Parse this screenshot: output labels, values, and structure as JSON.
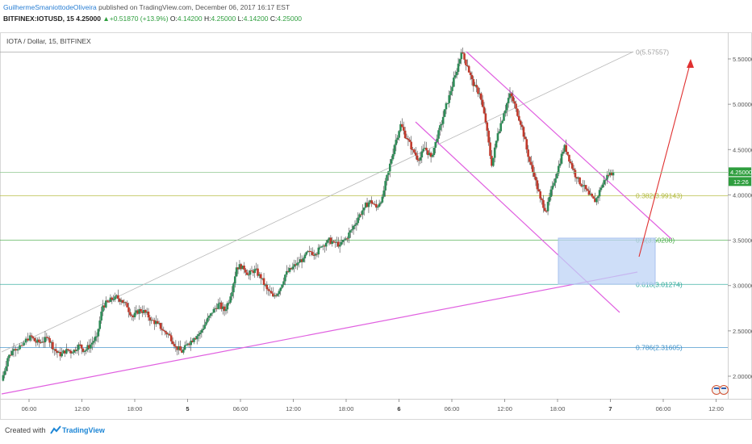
{
  "header": {
    "author": "GuilhermeSmaniottodeOliveira",
    "published": "published on TradingView.com, December 06, 2017 16:17 EST",
    "symbol": "BITFINEX:IOTUSD, 15",
    "last": "4.25000",
    "change": "+0.51870 (+13.9%)",
    "o_label": "O:",
    "o_value": "4.14200",
    "h_label": "H:",
    "h_value": "4.25000",
    "l_label": "L:",
    "l_value": "4.14200",
    "c_label": "C:",
    "c_value": "4.25000"
  },
  "chart_data": {
    "type": "candlestick",
    "title": "IOTA / Dollar, 15, BITFINEX",
    "ylim": [
      1.78,
      5.75
    ],
    "y_ticks": [
      "5.50000",
      "5.00000",
      "4.50000",
      "4.00000",
      "3.50000",
      "3.00000",
      "2.50000",
      "2.00000"
    ],
    "x_ticks": [
      "06:00",
      "12:00",
      "18:00",
      "5",
      "06:00",
      "12:00",
      "18:00",
      "6",
      "06:00",
      "12:00",
      "18:00",
      "7",
      "06:00",
      "12:00"
    ],
    "price_label": "4.25000",
    "price_time": "12:26",
    "fib_levels": [
      {
        "label": "0(5.57557)",
        "value": 5.57557,
        "color": "#a0a0a0"
      },
      {
        "label": "0.382(3.99143)",
        "value": 3.99143,
        "color": "#b0b838"
      },
      {
        "label": "0.5(3.50208)",
        "value": 3.50208,
        "color": "#4cae4c"
      },
      {
        "label": "0.618(3.01274)",
        "value": 3.01274,
        "color": "#2ea89a"
      },
      {
        "label": "0.786(2.31605)",
        "value": 2.31605,
        "color": "#3a8fc8"
      }
    ],
    "price_path": [
      [
        0,
        1.95
      ],
      [
        0.015,
        2.2
      ],
      [
        0.03,
        2.3
      ],
      [
        0.05,
        2.34
      ],
      [
        0.07,
        2.45
      ],
      [
        0.085,
        2.37
      ],
      [
        0.1,
        2.38
      ],
      [
        0.115,
        2.42
      ],
      [
        0.13,
        2.3
      ],
      [
        0.145,
        2.22
      ],
      [
        0.16,
        2.3
      ],
      [
        0.175,
        2.26
      ],
      [
        0.19,
        2.35
      ],
      [
        0.205,
        2.28
      ],
      [
        0.22,
        2.35
      ],
      [
        0.235,
        2.44
      ],
      [
        0.25,
        2.78
      ],
      [
        0.265,
        2.82
      ],
      [
        0.28,
        2.88
      ],
      [
        0.295,
        2.84
      ],
      [
        0.31,
        2.76
      ],
      [
        0.325,
        2.65
      ],
      [
        0.34,
        2.74
      ],
      [
        0.355,
        2.7
      ],
      [
        0.37,
        2.62
      ],
      [
        0.385,
        2.58
      ],
      [
        0.4,
        2.5
      ],
      [
        0.415,
        2.45
      ],
      [
        0.43,
        2.33
      ],
      [
        0.445,
        2.26
      ],
      [
        0.46,
        2.36
      ],
      [
        0.475,
        2.42
      ],
      [
        0.49,
        2.48
      ],
      [
        0.505,
        2.6
      ],
      [
        0.52,
        2.7
      ],
      [
        0.535,
        2.8
      ],
      [
        0.55,
        2.72
      ],
      [
        0.565,
        2.88
      ],
      [
        0.58,
        3.2
      ],
      [
        0.595,
        3.22
      ],
      [
        0.61,
        3.12
      ],
      [
        0.625,
        3.18
      ],
      [
        0.64,
        3.08
      ],
      [
        0.655,
        2.96
      ],
      [
        0.67,
        2.88
      ],
      [
        0.685,
        2.94
      ],
      [
        0.7,
        3.12
      ],
      [
        0.715,
        3.18
      ],
      [
        0.73,
        3.25
      ],
      [
        0.745,
        3.3
      ],
      [
        0.76,
        3.38
      ],
      [
        0.775,
        3.35
      ],
      [
        0.79,
        3.43
      ],
      [
        0.805,
        3.5
      ],
      [
        0.82,
        3.48
      ],
      [
        0.835,
        3.45
      ],
      [
        0.85,
        3.52
      ],
      [
        0.865,
        3.62
      ],
      [
        0.88,
        3.75
      ],
      [
        0.895,
        3.86
      ],
      [
        0.91,
        3.94
      ],
      [
        0.925,
        3.86
      ],
      [
        0.94,
        3.98
      ],
      [
        0.955,
        4.26
      ],
      [
        0.97,
        4.55
      ],
      [
        0.985,
        4.78
      ],
      [
        1.0,
        4.62
      ],
      [
        1.015,
        4.5
      ],
      [
        1.03,
        4.38
      ],
      [
        1.045,
        4.52
      ],
      [
        1.06,
        4.42
      ],
      [
        1.075,
        4.62
      ],
      [
        1.09,
        4.86
      ],
      [
        1.105,
        5.1
      ],
      [
        1.12,
        5.32
      ],
      [
        1.135,
        5.57
      ],
      [
        1.15,
        5.42
      ],
      [
        1.165,
        5.2
      ],
      [
        1.18,
        5.12
      ],
      [
        1.195,
        4.8
      ],
      [
        1.21,
        4.32
      ],
      [
        1.225,
        4.68
      ],
      [
        1.24,
        4.9
      ],
      [
        1.255,
        5.12
      ],
      [
        1.27,
        4.95
      ],
      [
        1.285,
        4.75
      ],
      [
        1.3,
        4.42
      ],
      [
        1.315,
        4.2
      ],
      [
        1.33,
        3.96
      ],
      [
        1.345,
        3.82
      ],
      [
        1.36,
        4.1
      ],
      [
        1.375,
        4.32
      ],
      [
        1.39,
        4.55
      ],
      [
        1.405,
        4.35
      ],
      [
        1.42,
        4.18
      ],
      [
        1.435,
        4.1
      ],
      [
        1.45,
        4.0
      ],
      [
        1.465,
        3.92
      ],
      [
        1.48,
        4.08
      ],
      [
        1.495,
        4.22
      ],
      [
        1.51,
        4.25
      ]
    ]
  },
  "footer": {
    "created_with": "Created with",
    "brand": "TradingView"
  }
}
